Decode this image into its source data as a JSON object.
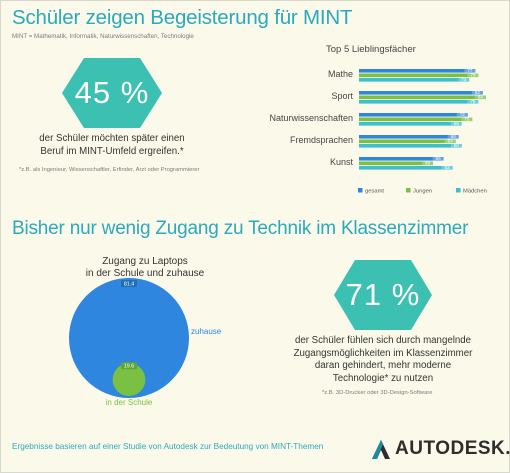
{
  "header": {
    "title": "Schüler zeigen Begeisterung für MINT",
    "subtitle": "MINT = Mathematik, Informatik, Naturwissenschaften, Technologie"
  },
  "stat1": {
    "value": "45 %",
    "text_line1": "der Schüler möchten später einen",
    "text_line2": "Beruf im MINT-Umfeld ergreifen.*",
    "footnote": "*z.B. als Ingenieur, Wissenschaftler, Erfinder, Arzt oder Programmierer"
  },
  "section2": {
    "title": "Bisher nur wenig Zugang zu Technik im Klassenzimmer"
  },
  "laptop": {
    "title_line1": "Zugang zu Laptops",
    "title_line2": "in der Schule und zuhause"
  },
  "stat2": {
    "value": "71 %",
    "text_line1": "der Schüler fühlen sich durch mangelnde",
    "text_line2": "Zugangsmöglichkeiten im Klassenzimmer",
    "text_line3": "daran gehindert, mehr moderne",
    "text_line4": "Technologie* zu nutzen",
    "footnote": "*z.B. 3D-Drucker oder 3D-Design-Software"
  },
  "footer": {
    "source": "Ergebnisse basieren auf einer Studie von Autodesk zur Bedeutung von MINT-Themen",
    "logo": "AUTODESK."
  },
  "colors": {
    "teal": "#2ba9bd",
    "hexagon": "#3cc0b2",
    "blue": "#2e86de",
    "green": "#79c043",
    "cyan": "#3dbfcc"
  },
  "chart_data": [
    {
      "type": "bar",
      "orientation": "horizontal",
      "title": "Top 5 Lieblingsfächer",
      "categories": [
        "Mathe",
        "Sport",
        "Naturwissenschaften",
        "Fremdsprachen",
        "Kunst"
      ],
      "series": [
        {
          "name": "gesamt",
          "color": "#2e86de",
          "values": [
            77,
            82,
            72,
            66,
            56
          ]
        },
        {
          "name": "Jungen",
          "color": "#79c043",
          "values": [
            79,
            84,
            75,
            64,
            49
          ]
        },
        {
          "name": "Mädchen",
          "color": "#3dbfcc",
          "values": [
            73,
            79,
            68,
            68,
            62
          ]
        }
      ],
      "legend": "bottom",
      "grid": false
    },
    {
      "type": "bubble",
      "title": "Zugang zu Laptops in der Schule und zuhause",
      "series": [
        {
          "name": "zuhause",
          "value": 81.4,
          "color": "#2e86de"
        },
        {
          "name": "in der Schule",
          "value": 19.6,
          "color": "#79c043"
        }
      ]
    }
  ]
}
